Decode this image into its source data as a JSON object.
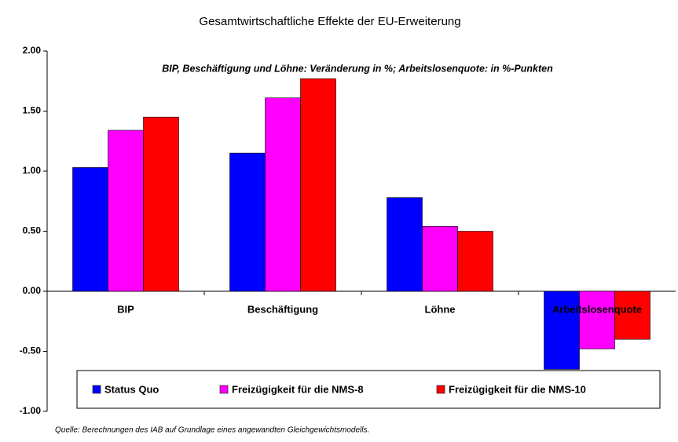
{
  "chart_data": {
    "type": "bar",
    "title": "Gesamtwirtschaftliche Effekte der EU-Erweiterung",
    "subtitle": "BIP, Beschäftigung und Löhne: Veränderung in %; Arbeitslosenquote: in %-Punkten",
    "source": "Quelle: Berechnungen des IAB auf Grundlage eines angewandten Gleichgewichtsmodells.",
    "categories": [
      "BIP",
      "Beschäftigung",
      "Löhne",
      "Arbeitslosenquote"
    ],
    "series": [
      {
        "name": "Status Quo",
        "color": "#0000ff",
        "values": [
          1.03,
          1.15,
          0.78,
          -0.65
        ]
      },
      {
        "name": "Freizügigkeit für die NMS-8",
        "color": "#ff00ff",
        "values": [
          1.34,
          1.61,
          0.54,
          -0.48
        ]
      },
      {
        "name": "Freizügigkeit für die NMS-10",
        "color": "#ff0000",
        "values": [
          1.45,
          1.77,
          0.5,
          -0.4
        ]
      }
    ],
    "ylim": [
      -1,
      2
    ],
    "yticks": [
      {
        "value": -1,
        "label": "-1.00"
      },
      {
        "value": -0.5,
        "label": "-0.50"
      },
      {
        "value": 0,
        "label": "0.00"
      },
      {
        "value": 0.5,
        "label": "0.50"
      },
      {
        "value": 1,
        "label": "1.00"
      },
      {
        "value": 1.5,
        "label": "1.50"
      },
      {
        "value": 2,
        "label": "2.00"
      }
    ],
    "legend": "bottom"
  }
}
